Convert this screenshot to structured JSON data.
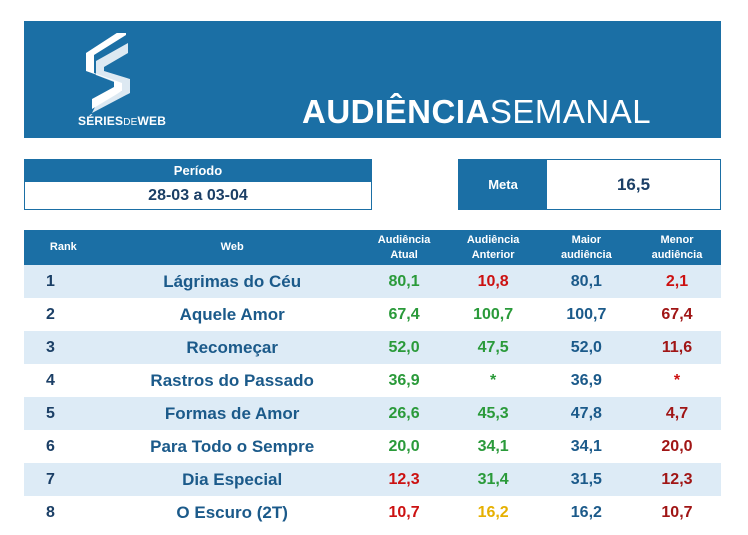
{
  "brand": {
    "logo_bold_1": "SÉRIES",
    "logo_mid": "DE",
    "logo_bold_2": "WEB"
  },
  "title": {
    "bold": "AUDIÊNCIA",
    "regular": "SEMANAL"
  },
  "period": {
    "label": "Período",
    "value": "28-03 a 03-04"
  },
  "meta": {
    "label": "Meta",
    "value": "16,5"
  },
  "table": {
    "headers": {
      "rank": "Rank",
      "web": "Web",
      "atual_1": "Audiência",
      "atual_2": "Atual",
      "anterior_1": "Audiência",
      "anterior_2": "Anterior",
      "maior_1": "Maior",
      "maior_2": "audiência",
      "menor_1": "Menor",
      "menor_2": "audiência"
    },
    "rows": [
      {
        "rank": "1",
        "web": "Lágrimas do Céu",
        "atual": "80,1",
        "anterior": "10,8",
        "maior": "80,1",
        "menor": "2,1"
      },
      {
        "rank": "2",
        "web": "Aquele Amor",
        "atual": "67,4",
        "anterior": "100,7",
        "maior": "100,7",
        "menor": "67,4"
      },
      {
        "rank": "3",
        "web": "Recomeçar",
        "atual": "52,0",
        "anterior": "47,5",
        "maior": "52,0",
        "menor": "11,6"
      },
      {
        "rank": "4",
        "web": "Rastros do Passado",
        "atual": "36,9",
        "anterior": "*",
        "maior": "36,9",
        "menor": "*"
      },
      {
        "rank": "5",
        "web": "Formas de Amor",
        "atual": "26,6",
        "anterior": "45,3",
        "maior": "47,8",
        "menor": "4,7"
      },
      {
        "rank": "6",
        "web": "Para Todo o Sempre",
        "atual": "20,0",
        "anterior": "34,1",
        "maior": "34,1",
        "menor": "20,0"
      },
      {
        "rank": "7",
        "web": "Dia Especial",
        "atual": "12,3",
        "anterior": "31,4",
        "maior": "31,5",
        "menor": "12,3"
      },
      {
        "rank": "8",
        "web": "O Escuro (2T)",
        "atual": "10,7",
        "anterior": "16,2",
        "maior": "16,2",
        "menor": "10,7"
      }
    ]
  },
  "colors": {
    "brand_blue": "#1b6fa5",
    "row_stripe": "#ddebf6",
    "value_green": "#2a9a3a",
    "value_red": "#cc1111",
    "value_darkred": "#a01515",
    "value_yellow": "#e6b000"
  }
}
